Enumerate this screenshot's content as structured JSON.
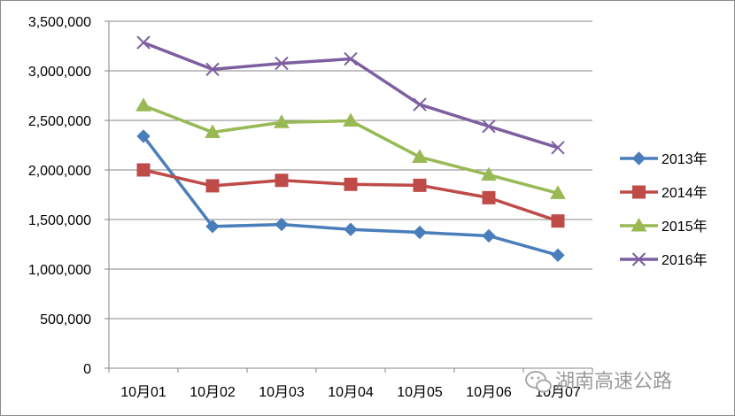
{
  "chart_data": {
    "type": "line",
    "title": "",
    "xlabel": "",
    "ylabel": "",
    "categories": [
      "10月01",
      "10月02",
      "10月03",
      "10月04",
      "10月05",
      "10月06",
      "10月07"
    ],
    "ylim": [
      0,
      3500000
    ],
    "yticks": [
      "0",
      "500,000",
      "1,000,000",
      "1,500,000",
      "2,000,000",
      "2,500,000",
      "3,000,000",
      "3,500,000"
    ],
    "grid": true,
    "legend_position": "right",
    "series": [
      {
        "name": "2013年",
        "color": "#4a7ebb",
        "marker": "diamond",
        "values": [
          2340000,
          1430000,
          1450000,
          1400000,
          1370000,
          1335000,
          1140000
        ]
      },
      {
        "name": "2014年",
        "color": "#be4b48",
        "marker": "square",
        "values": [
          2000000,
          1840000,
          1895000,
          1855000,
          1845000,
          1720000,
          1485000
        ]
      },
      {
        "name": "2015年",
        "color": "#98b954",
        "marker": "triangle",
        "values": [
          2650000,
          2380000,
          2480000,
          2495000,
          2130000,
          1950000,
          1765000
        ]
      },
      {
        "name": "2016年",
        "color": "#7d5fa0",
        "marker": "x",
        "values": [
          3285000,
          3015000,
          3075000,
          3120000,
          2660000,
          2440000,
          2225000
        ]
      }
    ]
  },
  "watermark": {
    "text": "湖南高速公路",
    "icon": "wechat-icon"
  }
}
